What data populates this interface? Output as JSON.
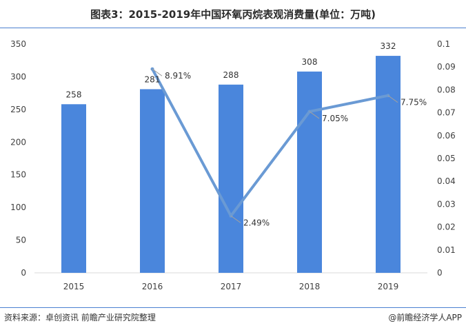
{
  "title": "图表3：2015-2019年中国环氧丙烷表观消费量(单位：万吨)",
  "source": "资料来源：卓创资讯 前瞻产业研究院整理",
  "credit": "@前瞻经济学人APP",
  "colors": {
    "bar": "#4a86dc",
    "line": "#6a9ad4",
    "rule": "#4a7fd0"
  },
  "chart_data": {
    "type": "bar",
    "categories": [
      "2015",
      "2016",
      "2017",
      "2018",
      "2019"
    ],
    "series": [
      {
        "values": [
          258,
          281,
          288,
          308,
          332
        ],
        "axis": "left",
        "kind": "bar",
        "labels": [
          "258",
          "281",
          "288",
          "308",
          "332"
        ]
      },
      {
        "values": [
          null,
          0.0891,
          0.0249,
          0.0705,
          0.0775
        ],
        "axis": "right",
        "kind": "line",
        "labels": [
          "",
          "8.91%",
          "2.49%",
          "7.05%",
          "7.75%"
        ]
      }
    ],
    "ylim_left": [
      0,
      350
    ],
    "yticks_left": [
      "0",
      "50",
      "100",
      "150",
      "200",
      "250",
      "300",
      "350"
    ],
    "ylim_right": [
      0,
      0.1
    ],
    "yticks_right": [
      "0",
      "0.01",
      "0.02",
      "0.03",
      "0.04",
      "0.05",
      "0.06",
      "0.07",
      "0.08",
      "0.09",
      "0.1"
    ],
    "grid": false,
    "legend": "none"
  }
}
